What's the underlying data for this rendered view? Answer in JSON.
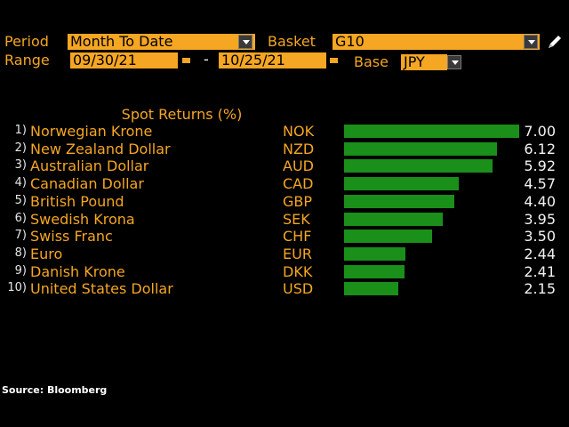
{
  "controls": {
    "period_label": "Period",
    "period_value": "Month To Date",
    "basket_label": "Basket",
    "basket_value": "G10",
    "range_label": "Range",
    "start_date": "09/30/21",
    "end_date": "10/25/21",
    "date_separator": "-",
    "base_label": "Base",
    "base_value": "JPY"
  },
  "chart_title": "Spot Returns (%)",
  "chart_data": {
    "type": "bar",
    "title": "Spot Returns (%)",
    "orientation": "horizontal",
    "max_value": 7.0,
    "color": "#1a8f1a",
    "rows": [
      {
        "rank": "1)",
        "name": "Norwegian Krone",
        "code": "NOK",
        "value": 7.0,
        "label": "7.00"
      },
      {
        "rank": "2)",
        "name": "New Zealand Dollar",
        "code": "NZD",
        "value": 6.12,
        "label": "6.12"
      },
      {
        "rank": "3)",
        "name": "Australian Dollar",
        "code": "AUD",
        "value": 5.92,
        "label": "5.92"
      },
      {
        "rank": "4)",
        "name": "Canadian Dollar",
        "code": "CAD",
        "value": 4.57,
        "label": "4.57"
      },
      {
        "rank": "5)",
        "name": "British Pound",
        "code": "GBP",
        "value": 4.4,
        "label": "4.40"
      },
      {
        "rank": "6)",
        "name": "Swedish Krona",
        "code": "SEK",
        "value": 3.95,
        "label": "3.95"
      },
      {
        "rank": "7)",
        "name": "Swiss Franc",
        "code": "CHF",
        "value": 3.5,
        "label": "3.50"
      },
      {
        "rank": "8)",
        "name": "Euro",
        "code": "EUR",
        "value": 2.44,
        "label": "2.44"
      },
      {
        "rank": "9)",
        "name": "Danish Krone",
        "code": "DKK",
        "value": 2.41,
        "label": "2.41"
      },
      {
        "rank": "10)",
        "name": "United States Dollar",
        "code": "USD",
        "value": 2.15,
        "label": "2.15"
      }
    ]
  },
  "source": "Source: Bloomberg"
}
